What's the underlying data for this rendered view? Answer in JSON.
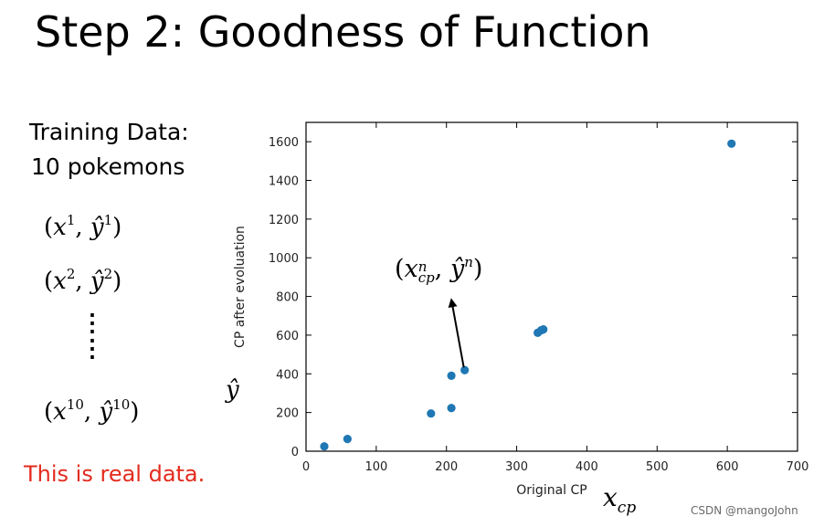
{
  "slide": {
    "title": "Step 2: Goodness of Function",
    "training_line1": "Training Data:",
    "training_line2": "10 pokemons",
    "note": "This is real data."
  },
  "math": {
    "pair1": {
      "x": "x",
      "xsup": "1",
      "y": "ŷ",
      "ysup": "1"
    },
    "pair2": {
      "x": "x",
      "xsup": "2",
      "y": "ŷ",
      "ysup": "2"
    },
    "vdots": "⋮",
    "pair10": {
      "x": "x",
      "xsup": "10",
      "y": "ŷ",
      "ysup": "10"
    },
    "point_label": {
      "x": "x",
      "sub": "cp",
      "sup": "n",
      "y": "ŷ",
      "ysup": "n"
    },
    "yhat": "ŷ",
    "xcp": {
      "x": "x",
      "sub": "cp"
    }
  },
  "watermark": "CSDN @mangoJohn",
  "colors": {
    "marker": "#1f77b4",
    "note": "#e32b1e"
  },
  "chart_data": {
    "type": "scatter",
    "xlabel": "Original CP",
    "ylabel": "CP after evoluation",
    "xlim": [
      0,
      700
    ],
    "ylim": [
      0,
      1700
    ],
    "xticks": [
      0,
      100,
      200,
      300,
      400,
      500,
      600,
      700
    ],
    "yticks": [
      0,
      200,
      400,
      600,
      800,
      1000,
      1200,
      1400,
      1600
    ],
    "grid": false,
    "points": [
      {
        "x": 26,
        "y": 25
      },
      {
        "x": 59,
        "y": 63
      },
      {
        "x": 178,
        "y": 195
      },
      {
        "x": 207,
        "y": 223
      },
      {
        "x": 207,
        "y": 390
      },
      {
        "x": 226,
        "y": 419
      },
      {
        "x": 330,
        "y": 612
      },
      {
        "x": 335,
        "y": 625
      },
      {
        "x": 338,
        "y": 630
      },
      {
        "x": 606,
        "y": 1590
      }
    ],
    "annotation": {
      "target_x": 226,
      "target_y": 419
    }
  }
}
